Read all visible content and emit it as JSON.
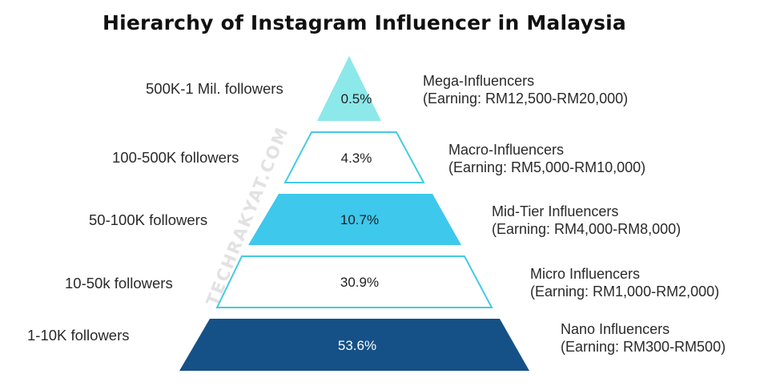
{
  "title": "Hierarchy of Instagram Influencer in Malaysia",
  "watermark": "TECHRAKYAT.COM",
  "colors": {
    "level_1_fill": "#8de8ea",
    "level_2_fill": "#ffffff",
    "level_3_fill": "#3dc8ec",
    "level_4_fill": "#ffffff",
    "level_5_fill": "#155187",
    "outline": "#45c9e6"
  },
  "levels": [
    {
      "followers": "500K-1 Mil. followers",
      "percent": "0.5%",
      "tier": "Mega-Influencers",
      "earning": "(Earning: RM12,500-RM20,000)"
    },
    {
      "followers": "100-500K followers",
      "percent": "4.3%",
      "tier": "Macro-Influencers",
      "earning": "(Earning: RM5,000-RM10,000)"
    },
    {
      "followers": "50-100K followers",
      "percent": "10.7%",
      "tier": "Mid-Tier Influencers",
      "earning": "(Earning: RM4,000-RM8,000)"
    },
    {
      "followers": "10-50k followers",
      "percent": "30.9%",
      "tier": "Micro Influencers",
      "earning": "(Earning: RM1,000-RM2,000)"
    },
    {
      "followers": "1-10K followers",
      "percent": "53.6%",
      "tier": "Nano Influencers",
      "earning": "(Earning: RM300-RM500)"
    }
  ]
}
